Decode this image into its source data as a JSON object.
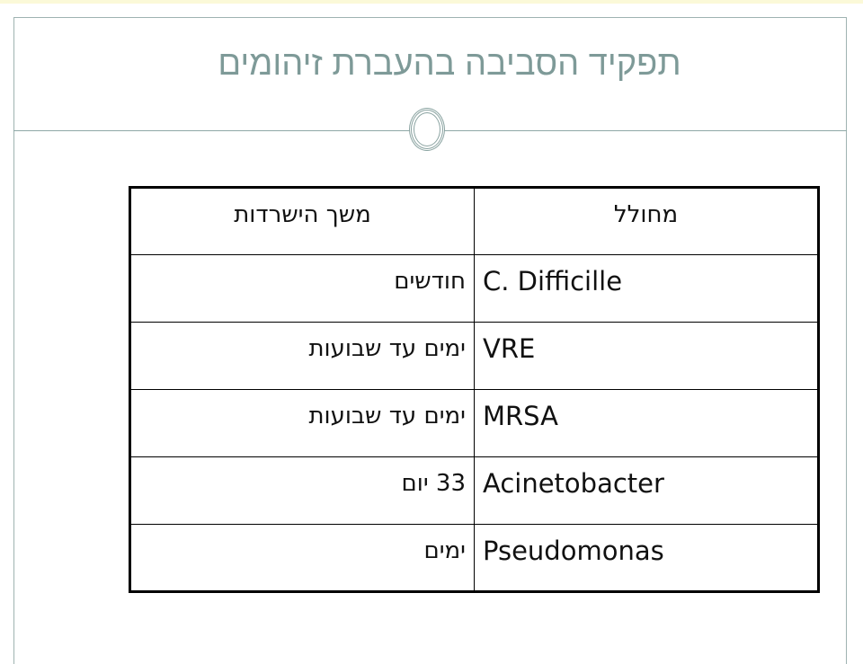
{
  "slide": {
    "title": "תפקיד הסביבה בהעברת זיהומים",
    "table": {
      "headers": [
        "מחולל",
        "משך הישרדות"
      ],
      "rows": [
        [
          "C. Difficille",
          "חודשים"
        ],
        [
          "VRE",
          "ימים עד שבועות"
        ],
        [
          "MRSA",
          "ימים עד שבועות"
        ],
        [
          "Acinetobacter",
          "33 יום"
        ],
        [
          "Pseudomonas",
          "ימים"
        ]
      ]
    }
  }
}
